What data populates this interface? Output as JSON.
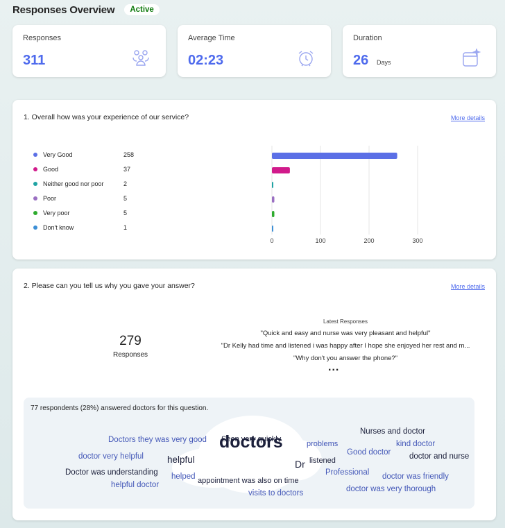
{
  "header": {
    "title": "Responses Overview",
    "status": "Active"
  },
  "stats": [
    {
      "label": "Responses",
      "value": "311",
      "unit": "",
      "icon": "people-group-icon"
    },
    {
      "label": "Average Time",
      "value": "02:23",
      "unit": "",
      "icon": "alarm-clock-icon"
    },
    {
      "label": "Duration",
      "value": "26",
      "unit": "Days",
      "icon": "calendar-sparkle-icon"
    }
  ],
  "q1": {
    "title": "1. Overall how was your experience of our service?",
    "more_details": "More details",
    "legend": [
      {
        "label": "Very Good",
        "count": "258",
        "color": "#5b6fe6"
      },
      {
        "label": "Good",
        "count": "37",
        "color": "#d11a8b"
      },
      {
        "label": "Neither good nor poor",
        "count": "2",
        "color": "#1fa3a3"
      },
      {
        "label": "Poor",
        "count": "5",
        "color": "#9a6fc2"
      },
      {
        "label": "Very poor",
        "count": "5",
        "color": "#2eab2e"
      },
      {
        "label": "Don't know",
        "count": "1",
        "color": "#3c8fd6"
      }
    ]
  },
  "chart_data": {
    "type": "bar",
    "orientation": "horizontal",
    "categories": [
      "Very Good",
      "Good",
      "Neither good nor poor",
      "Poor",
      "Very poor",
      "Don't know"
    ],
    "values": [
      258,
      37,
      2,
      5,
      5,
      1
    ],
    "colors": [
      "#5b6fe6",
      "#d11a8b",
      "#1fa3a3",
      "#9a6fc2",
      "#2eab2e",
      "#3c8fd6"
    ],
    "xticks": [
      "0",
      "100",
      "200",
      "300"
    ],
    "xlim": [
      0,
      300
    ],
    "grid": true,
    "title": "",
    "xlabel": "",
    "ylabel": ""
  },
  "q2": {
    "title": "2. Please can you tell us why you gave your answer?",
    "more_details": "More details",
    "count": "279",
    "count_label": "Responses",
    "latest_title": "Latest Responses",
    "latest": [
      "\"Quick and easy and nurse was very pleasant and helpful\"",
      "\"Dr Kelly had time and listened i was happy after I hope she enjoyed her rest and m...",
      "\"Why don't you answer the phone?\""
    ],
    "more_indicator": "...",
    "summary": "77 respondents (28%) answered doctors for this question.",
    "words": [
      {
        "text": "doctors",
        "tone": "dark"
      },
      {
        "text": "Doctors they was very good",
        "tone": "blue"
      },
      {
        "text": "Seen very quickly",
        "tone": "dark"
      },
      {
        "text": "Nurses and doctor",
        "tone": "dark"
      },
      {
        "text": "problems",
        "tone": "blue"
      },
      {
        "text": "kind doctor",
        "tone": "blue"
      },
      {
        "text": "doctor very helpful",
        "tone": "blue"
      },
      {
        "text": "helpful",
        "tone": "dark"
      },
      {
        "text": "Dr",
        "tone": "dark"
      },
      {
        "text": "listened",
        "tone": "dark"
      },
      {
        "text": "Good doctor",
        "tone": "blue"
      },
      {
        "text": "doctor and nurse",
        "tone": "dark"
      },
      {
        "text": "Doctor was understanding",
        "tone": "dark"
      },
      {
        "text": "helped",
        "tone": "blue"
      },
      {
        "text": "appointment was also on time",
        "tone": "dark"
      },
      {
        "text": "Professional",
        "tone": "blue"
      },
      {
        "text": "doctor was friendly",
        "tone": "blue"
      },
      {
        "text": "helpful doctor",
        "tone": "blue"
      },
      {
        "text": "visits to doctors",
        "tone": "blue"
      },
      {
        "text": "doctor was very thorough",
        "tone": "blue"
      }
    ]
  }
}
